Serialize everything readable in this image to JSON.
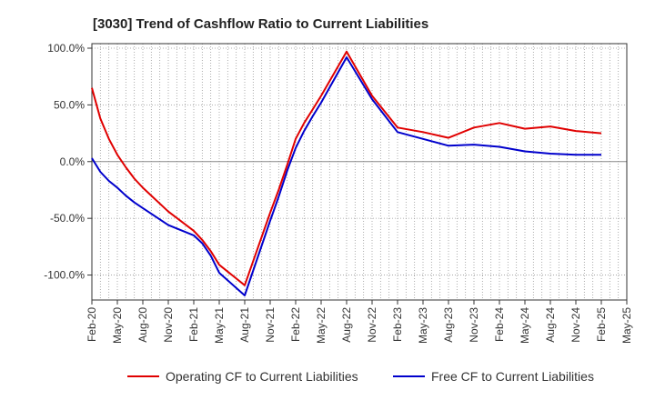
{
  "title": "[3030]  Trend of Cashflow Ratio to Current Liabilities",
  "colors": {
    "operating": "#e00000",
    "free": "#0000cc",
    "grid": "#999999",
    "zero_line": "#888888",
    "axis": "#333333"
  },
  "legend": {
    "operating_label": "Operating CF to Current Liabilities",
    "free_label": "Free CF to Current Liabilities",
    "placement": "bottom"
  },
  "chart_data": {
    "type": "line",
    "title": "[3030]  Trend of Cashflow Ratio to Current Liabilities",
    "xlabel": "",
    "ylabel": "",
    "ylim": [
      -122,
      104
    ],
    "y_ticks": [
      100,
      50,
      0,
      -50,
      -100
    ],
    "y_tick_labels": [
      "100.0%",
      "50.0%",
      "0.0%",
      "-50.0%",
      "-100.0%"
    ],
    "grid": true,
    "x_tick_labels": [
      "Feb-20",
      "May-20",
      "Aug-20",
      "Nov-20",
      "Feb-21",
      "May-21",
      "Aug-21",
      "Nov-21",
      "Feb-22",
      "May-22",
      "Aug-22",
      "Nov-22",
      "Feb-23",
      "May-23",
      "Aug-23",
      "Nov-23",
      "Feb-24",
      "May-24",
      "Aug-24",
      "Nov-24",
      "Feb-25",
      "May-25"
    ],
    "x": [
      "Feb-20",
      "Mar-20",
      "Apr-20",
      "May-20",
      "Jun-20",
      "Jul-20",
      "Aug-20",
      "Nov-20",
      "Feb-21",
      "Mar-21",
      "Apr-21",
      "May-21",
      "Aug-21",
      "Nov-21",
      "Dec-21",
      "Jan-22",
      "Feb-22",
      "Mar-22",
      "Apr-22",
      "May-22",
      "Aug-22",
      "Nov-22",
      "Feb-23",
      "May-23",
      "Aug-23",
      "Nov-23",
      "Feb-24",
      "May-24",
      "Aug-24",
      "Nov-24",
      "Feb-25"
    ],
    "series": [
      {
        "name": "Operating CF to Current Liabilities",
        "values": [
          65,
          38,
          20,
          6,
          -5,
          -15,
          -23,
          -44,
          -61,
          -69,
          -79,
          -91,
          -109,
          -45,
          -25,
          -3,
          20,
          34,
          46,
          58,
          97,
          58,
          30,
          26,
          21,
          30,
          34,
          29,
          31,
          27,
          25
        ]
      },
      {
        "name": "Free CF to Current Liabilities",
        "values": [
          3,
          -9,
          -17,
          -23,
          -30,
          -36,
          -41,
          -56,
          -65,
          -72,
          -83,
          -98,
          -118,
          -52,
          -31,
          -8,
          12,
          27,
          40,
          52,
          92,
          55,
          26,
          20,
          14,
          15,
          13,
          9,
          7,
          6,
          6
        ]
      }
    ]
  }
}
